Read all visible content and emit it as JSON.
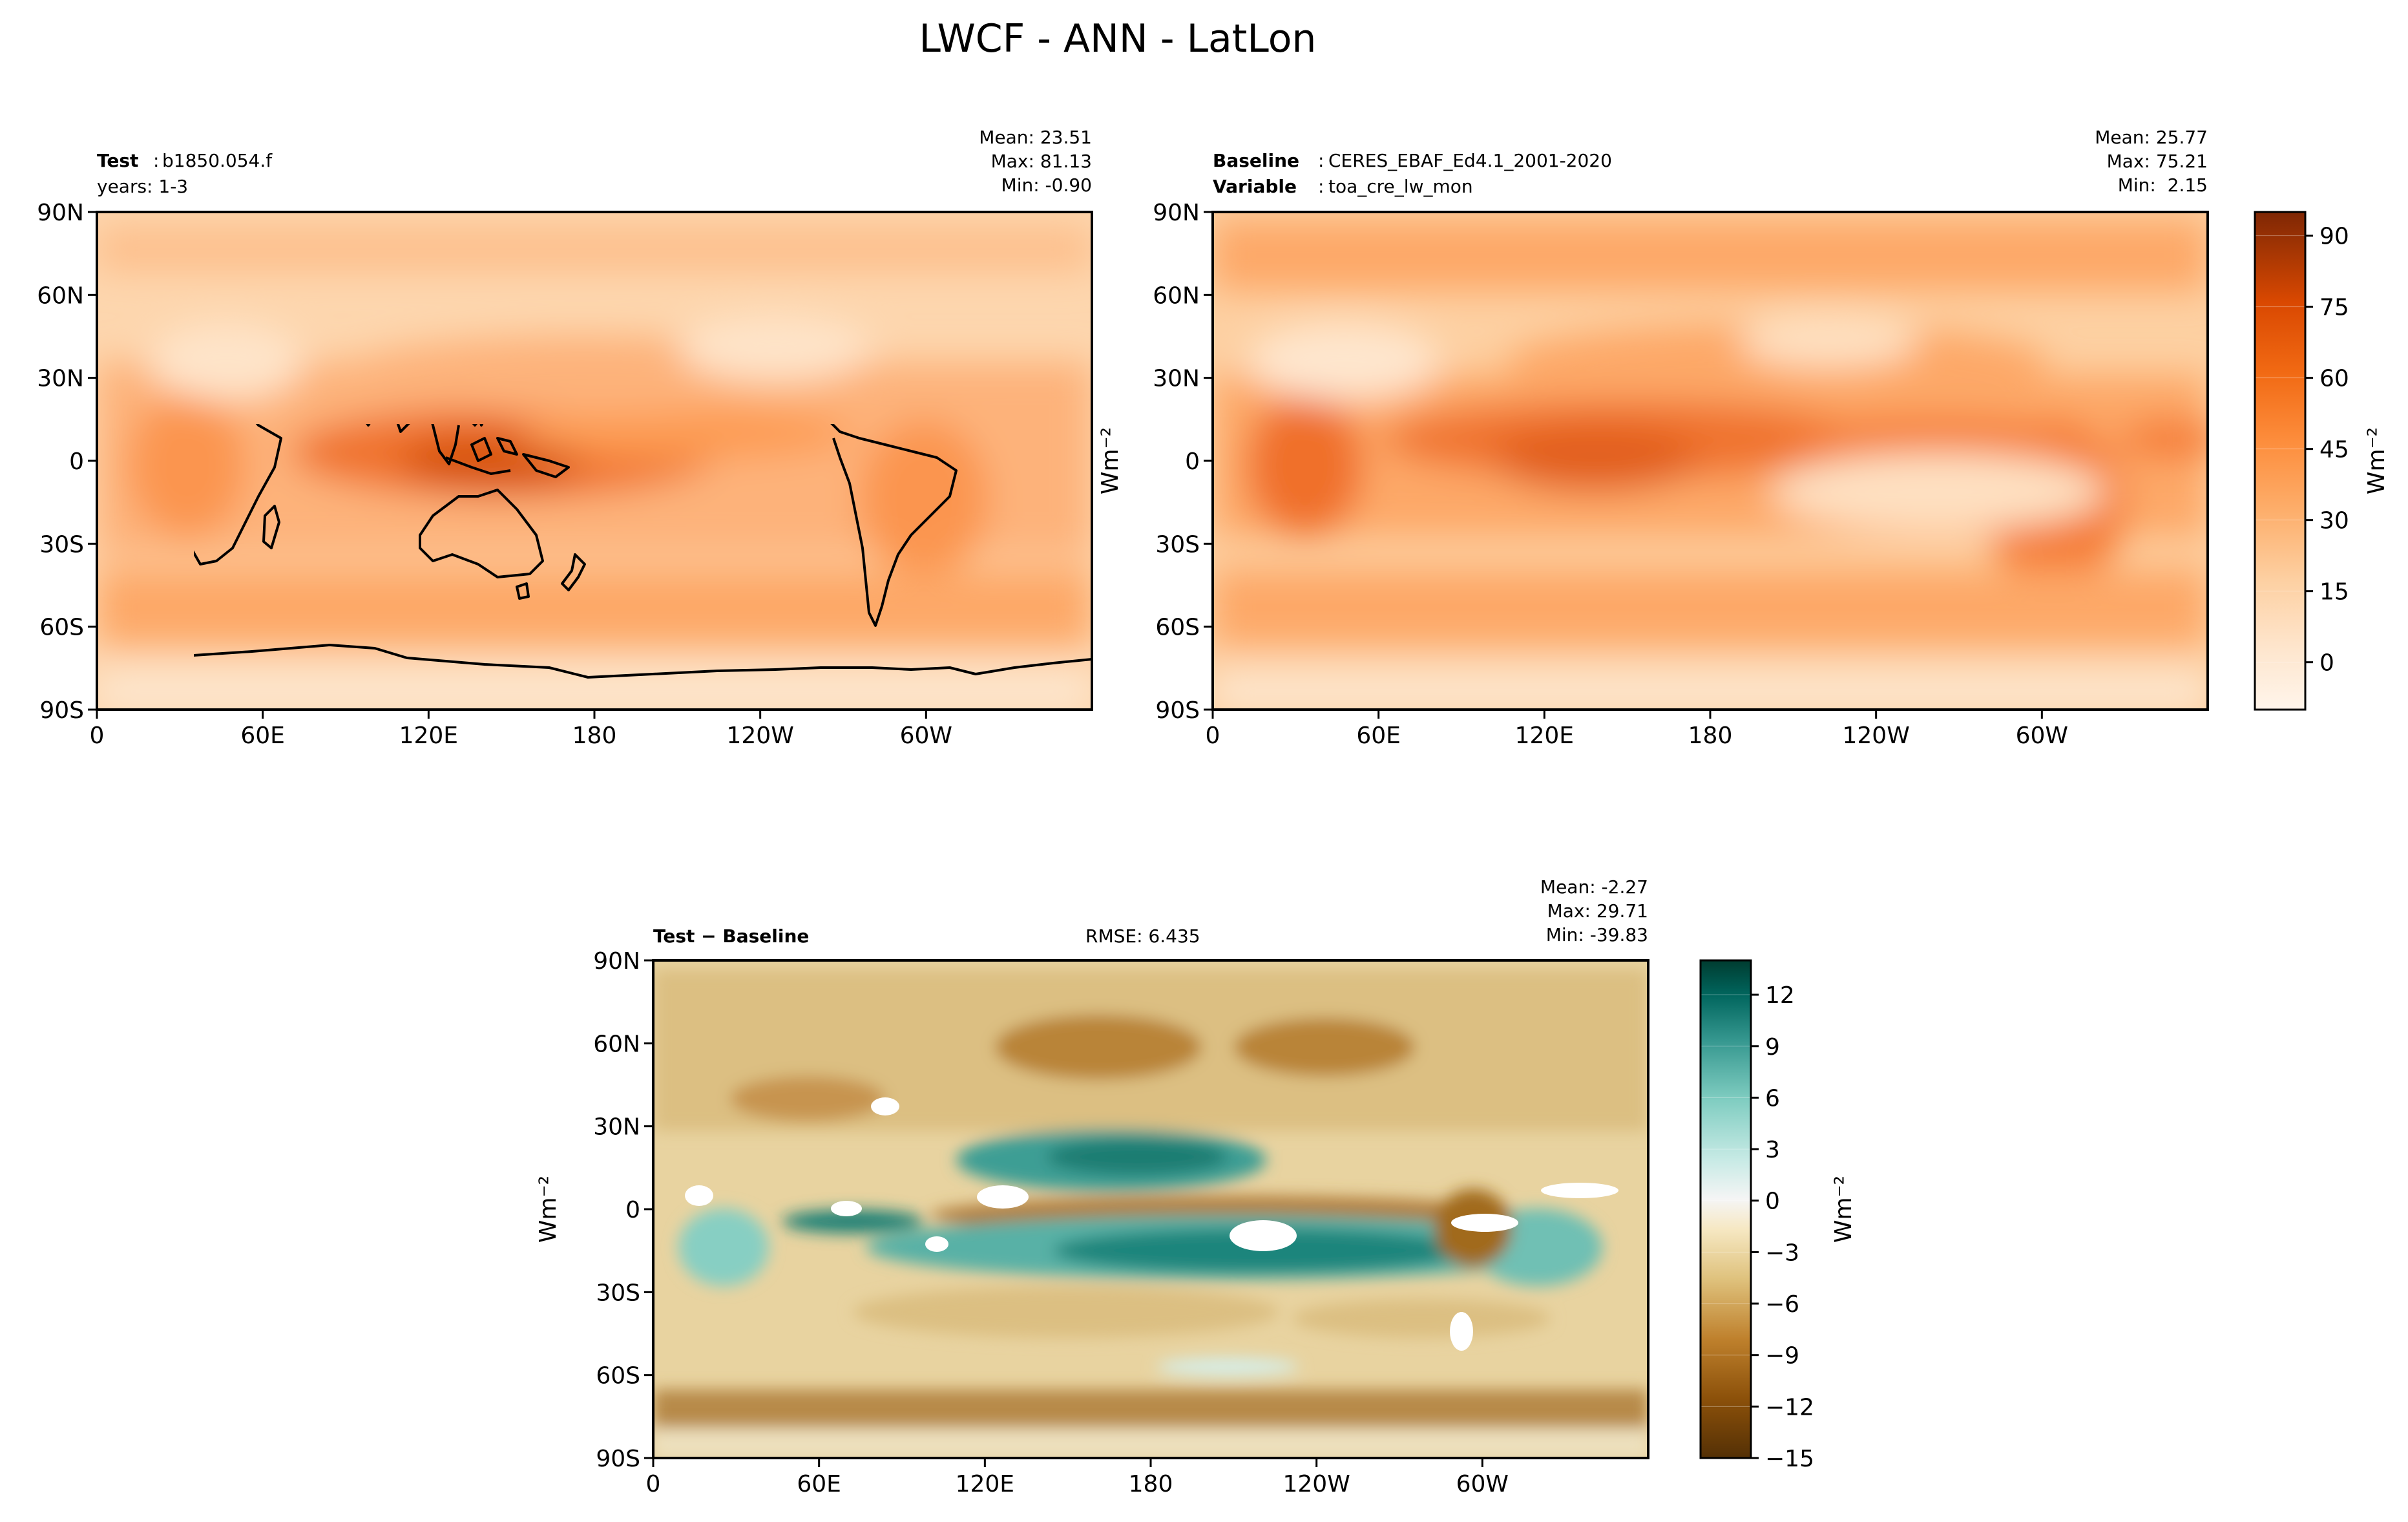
{
  "figure_title": "LWCF - ANN - LatLon",
  "colors": {
    "cmap_orange": [
      "#fff5eb",
      "#fee6ce",
      "#fdd0a2",
      "#fdae6b",
      "#fd8d3c",
      "#f16913",
      "#d94801",
      "#a63603",
      "#7f2704"
    ],
    "cmap_diff": [
      "#543005",
      "#8c510a",
      "#bf812d",
      "#dfc27d",
      "#f6e8c3",
      "#f5f5f5",
      "#c7eae5",
      "#80cdc1",
      "#35978f",
      "#01665e",
      "#003c30"
    ],
    "coast": "#000000"
  },
  "chart_data": [
    {
      "type": "heatmap",
      "panel": "test",
      "name_bold": "Test",
      "name_value": "b1850.054.f",
      "line2": "years: 1-3",
      "stats": [
        "Mean: 23.51",
        "Max: 81.13",
        "Min: -0.90"
      ],
      "mean": 23.51,
      "max": 81.13,
      "min": -0.9,
      "yticks": [
        "90N",
        "60N",
        "30N",
        "0",
        "30S",
        "60S",
        "90S"
      ],
      "xticks": [
        "0",
        "60E",
        "120E",
        "180",
        "120W",
        "60W"
      ],
      "xlim": [
        0,
        360
      ],
      "ylim": [
        -90,
        90
      ]
    },
    {
      "type": "heatmap",
      "panel": "baseline",
      "name_bold": "Baseline",
      "name_value": "CERES_EBAF_Ed4.1_2001-2020",
      "var_bold": "Variable",
      "var_value": "toa_cre_lw_mon",
      "stats": [
        "Mean: 25.77",
        "Max: 75.21",
        "Min:  2.15"
      ],
      "mean": 25.77,
      "max": 75.21,
      "min": 2.15,
      "yticks": [
        "90N",
        "60N",
        "30N",
        "0",
        "30S",
        "60S",
        "90S"
      ],
      "xticks": [
        "0",
        "60E",
        "120E",
        "180",
        "120W",
        "60W"
      ],
      "xlim": [
        0,
        360
      ],
      "ylim": [
        -90,
        90
      ],
      "colorbar": {
        "ticks": [
          "90",
          "75",
          "60",
          "45",
          "30",
          "15",
          "0"
        ],
        "tick_values": [
          90,
          75,
          60,
          45,
          30,
          15,
          0
        ],
        "range": [
          -10,
          95
        ],
        "label": "Wm⁻²"
      }
    },
    {
      "type": "heatmap",
      "panel": "difference",
      "name_bold": "Test − Baseline",
      "rmse": "RMSE: 6.435",
      "stats": [
        "Mean: -2.27",
        "Max: 29.71",
        "Min: -39.83"
      ],
      "mean": -2.27,
      "max": 29.71,
      "min": -39.83,
      "yticks": [
        "90N",
        "60N",
        "30N",
        "0",
        "30S",
        "60S",
        "90S"
      ],
      "xticks": [
        "0",
        "60E",
        "120E",
        "180",
        "120W",
        "60W"
      ],
      "xlim": [
        0,
        360
      ],
      "ylim": [
        -90,
        90
      ],
      "colorbar": {
        "ticks": [
          "12",
          "9",
          "6",
          "3",
          "0",
          "−3",
          "−6",
          "−9",
          "−12",
          "−15"
        ],
        "tick_values": [
          12,
          9,
          6,
          3,
          0,
          -3,
          -6,
          -9,
          -12,
          -15
        ],
        "range": [
          -15,
          14
        ],
        "label": "Wm⁻²"
      }
    }
  ],
  "y_unit_label": "Wm⁻²"
}
